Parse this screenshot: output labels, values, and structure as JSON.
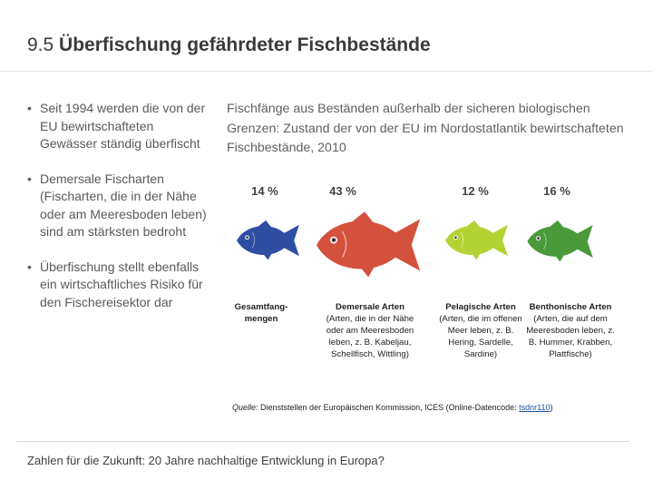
{
  "slide": {
    "title_number": "9.5",
    "title_text": "Überfischung gefährdeter Fischbestände"
  },
  "bullets": [
    "Seit 1994 werden die von der EU bewirtschafteten Gewässer ständig überfischt",
    "Demersale Fischarten (Fischarten, die in der Nähe oder am Meeresboden leben) sind am stärksten bedroht",
    "Überfischung stellt ebenfalls ein wirtschaftliches Risiko für den Fischereisektor dar"
  ],
  "chart": {
    "intro": "Fischfänge aus Beständen außerhalb der sicheren biologischen Grenzen: Zustand der von der EU im Nordostatlantik bewirtschafteten Fischbestände, 2010",
    "colors": {
      "blue": "#2e4ea2",
      "red": "#d4513e",
      "yellow_green": "#b3d334",
      "green": "#4a9a3c"
    },
    "groups": [
      {
        "pct": "14 %",
        "head": "Gesamtfang-mengen",
        "desc": ""
      },
      {
        "pct": "43 %",
        "head": "Demersale Arten",
        "desc": "(Arten, die in der Nähe oder am Meeresboden leben, z. B. Kabeljau, Schellfisch, Wittling)"
      },
      {
        "pct": "12 %",
        "head": "Pelagische Arten",
        "desc": "(Arten, die im offenen Meer leben, z. B. Hering, Sardelle, Sardine)"
      },
      {
        "pct": "16 %",
        "head": "Benthonische Arten",
        "desc": "(Arten, die auf dem Meeresboden leben, z. B. Hummer, Krabben, Plattfische)"
      }
    ],
    "source": {
      "label": "Quelle:",
      "text": " Dienststellen der Europäischen Kommission, ICES (Online-Datencode: ",
      "code": "tsdnr110",
      "end": ")"
    }
  },
  "footer": "Zahlen für die Zukunft: 20 Jahre nachhaltige Entwicklung in Europa?"
}
